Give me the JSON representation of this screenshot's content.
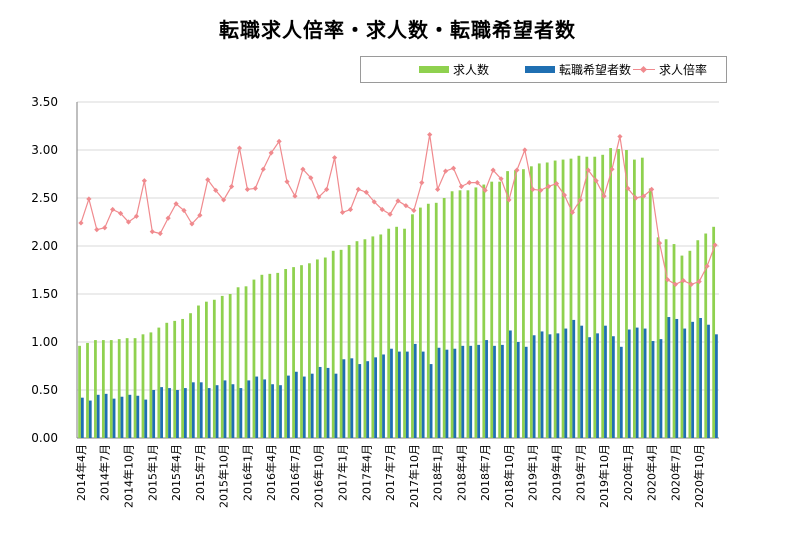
{
  "chart_data": {
    "type": "bar",
    "title": "転職求人倍率・求人数・転職希望者数",
    "xlabel": "",
    "ylabel": "",
    "ylim": [
      0,
      3.5
    ],
    "yticks": [
      "0.00",
      "0.50",
      "1.00",
      "1.50",
      "2.00",
      "2.50",
      "3.00",
      "3.50"
    ],
    "grid": true,
    "legend_position": "top-right",
    "colors": {
      "求人数": "#8fd14f",
      "転職希望者数": "#1f6fb2",
      "求人倍率": "#f08a8e"
    },
    "categories": [
      "2014年4月",
      "2014年5月",
      "2014年6月",
      "2014年7月",
      "2014年8月",
      "2014年9月",
      "2014年10月",
      "2014年11月",
      "2014年12月",
      "2015年1月",
      "2015年2月",
      "2015年3月",
      "2015年4月",
      "2015年5月",
      "2015年6月",
      "2015年7月",
      "2015年8月",
      "2015年9月",
      "2015年10月",
      "2015年11月",
      "2015年12月",
      "2016年1月",
      "2016年2月",
      "2016年3月",
      "2016年4月",
      "2016年5月",
      "2016年6月",
      "2016年7月",
      "2016年8月",
      "2016年9月",
      "2016年10月",
      "2016年11月",
      "2016年12月",
      "2017年1月",
      "2017年2月",
      "2017年3月",
      "2017年4月",
      "2017年5月",
      "2017年6月",
      "2017年7月",
      "2017年8月",
      "2017年9月",
      "2017年10月",
      "2017年11月",
      "2017年12月",
      "2018年1月",
      "2018年2月",
      "2018年3月",
      "2018年4月",
      "2018年5月",
      "2018年6月",
      "2018年7月",
      "2018年8月",
      "2018年9月",
      "2018年10月",
      "2018年11月",
      "2018年12月",
      "2019年1月",
      "2019年2月",
      "2019年3月",
      "2019年4月",
      "2019年5月",
      "2019年6月",
      "2019年7月",
      "2019年8月",
      "2019年9月",
      "2019年10月",
      "2019年11月",
      "2019年12月",
      "2020年1月",
      "2020年2月",
      "2020年3月",
      "2020年4月",
      "2020年5月",
      "2020年6月",
      "2020年7月",
      "2020年8月",
      "2020年9月",
      "2020年10月",
      "2020年11月",
      "2020年12月"
    ],
    "xtick_labels": [
      "2014年4月",
      "2014年7月",
      "2014年10月",
      "2015年1月",
      "2015年4月",
      "2015年7月",
      "2015年10月",
      "2016年1月",
      "2016年4月",
      "2016年7月",
      "2016年10月",
      "2017年1月",
      "2017年4月",
      "2017年7月",
      "2017年10月",
      "2018年1月",
      "2018年4月",
      "2018年7月",
      "2018年10月",
      "2019年1月",
      "2019年4月",
      "2019年7月",
      "2019年10月",
      "2020年1月",
      "2020年4月",
      "2020年7月",
      "2020年10月"
    ],
    "series": [
      {
        "name": "求人数",
        "type": "bar",
        "values": [
          0.96,
          0.99,
          1.02,
          1.02,
          1.02,
          1.03,
          1.04,
          1.04,
          1.08,
          1.1,
          1.15,
          1.2,
          1.22,
          1.24,
          1.3,
          1.38,
          1.42,
          1.44,
          1.48,
          1.5,
          1.57,
          1.58,
          1.65,
          1.7,
          1.71,
          1.72,
          1.76,
          1.78,
          1.8,
          1.82,
          1.86,
          1.88,
          1.95,
          1.96,
          2.01,
          2.05,
          2.07,
          2.1,
          2.12,
          2.18,
          2.2,
          2.18,
          2.33,
          2.4,
          2.44,
          2.45,
          2.5,
          2.57,
          2.58,
          2.58,
          2.61,
          2.64,
          2.67,
          2.67,
          2.78,
          2.79,
          2.8,
          2.83,
          2.86,
          2.87,
          2.89,
          2.9,
          2.91,
          2.94,
          2.93,
          2.93,
          2.95,
          3.02,
          3.01,
          3.0,
          2.9,
          2.92,
          2.6,
          2.09,
          2.07,
          2.02,
          1.9,
          1.95,
          2.06,
          2.13,
          2.2
        ]
      },
      {
        "name": "転職希望者数",
        "type": "bar",
        "values": [
          0.42,
          0.39,
          0.45,
          0.46,
          0.41,
          0.43,
          0.45,
          0.44,
          0.4,
          0.5,
          0.53,
          0.52,
          0.5,
          0.52,
          0.58,
          0.58,
          0.52,
          0.55,
          0.6,
          0.56,
          0.52,
          0.6,
          0.64,
          0.61,
          0.56,
          0.55,
          0.65,
          0.69,
          0.64,
          0.67,
          0.74,
          0.73,
          0.67,
          0.82,
          0.83,
          0.77,
          0.8,
          0.84,
          0.87,
          0.93,
          0.9,
          0.9,
          0.98,
          0.9,
          0.77,
          0.94,
          0.92,
          0.93,
          0.96,
          0.96,
          0.97,
          1.02,
          0.96,
          0.97,
          1.12,
          1.0,
          0.95,
          1.07,
          1.11,
          1.08,
          1.09,
          1.14,
          1.23,
          1.17,
          1.05,
          1.09,
          1.17,
          1.06,
          0.95,
          1.13,
          1.15,
          1.14,
          1.01,
          1.03,
          1.26,
          1.24,
          1.14,
          1.21,
          1.25,
          1.18,
          1.08
        ]
      },
      {
        "name": "求人倍率",
        "type": "line",
        "values": [
          2.24,
          2.49,
          2.17,
          2.19,
          2.38,
          2.34,
          2.25,
          2.31,
          2.68,
          2.15,
          2.13,
          2.29,
          2.44,
          2.37,
          2.23,
          2.32,
          2.69,
          2.58,
          2.48,
          2.62,
          3.02,
          2.59,
          2.6,
          2.8,
          2.97,
          3.09,
          2.67,
          2.52,
          2.8,
          2.71,
          2.51,
          2.59,
          2.92,
          2.35,
          2.38,
          2.59,
          2.56,
          2.46,
          2.38,
          2.33,
          2.47,
          2.42,
          2.37,
          2.66,
          3.16,
          2.59,
          2.78,
          2.81,
          2.62,
          2.66,
          2.66,
          2.58,
          2.79,
          2.7,
          2.48,
          2.79,
          3.0,
          2.59,
          2.58,
          2.62,
          2.65,
          2.53,
          2.35,
          2.48,
          2.79,
          2.68,
          2.52,
          2.8,
          3.14,
          2.6,
          2.5,
          2.52,
          2.59,
          2.03,
          1.65,
          1.6,
          1.64,
          1.6,
          1.63,
          1.79,
          2.01
        ]
      }
    ]
  }
}
